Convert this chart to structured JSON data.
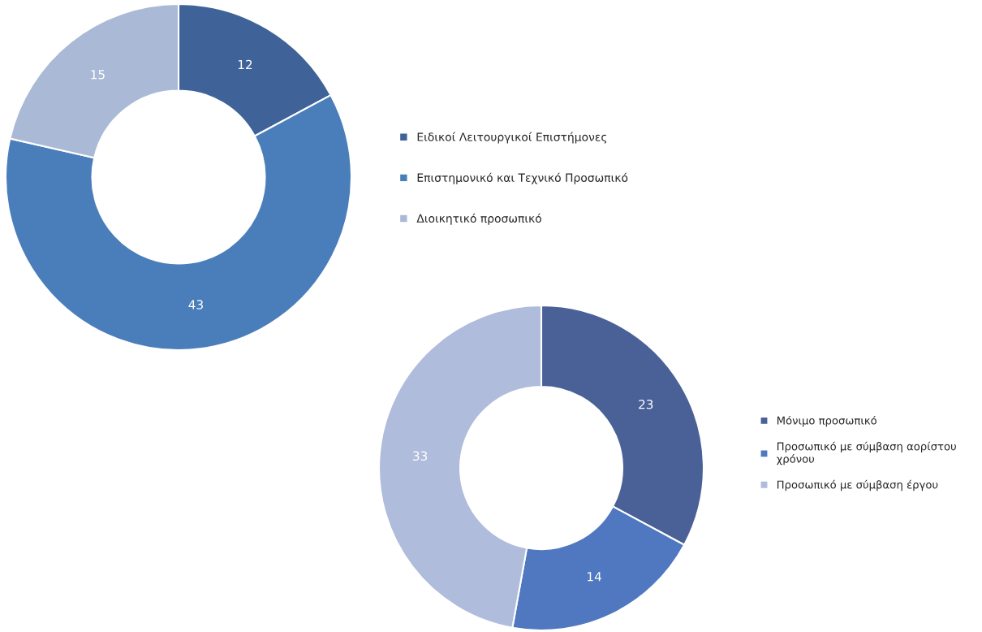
{
  "chart_data": [
    {
      "type": "donut",
      "categories": [
        "Ειδικοί Λειτουργικοί Επιστήμονες",
        "Επιστημονικό και Τεχνικό Προσωπικό",
        "Διοικητικό προσωπικό"
      ],
      "values": [
        12,
        43,
        15
      ],
      "colors": [
        "#3f6399",
        "#4a7ebb",
        "#a9b9d6"
      ],
      "data_labels": true,
      "legend": "right"
    },
    {
      "type": "donut",
      "categories": [
        "Μόνιμο προσωπικό",
        "Προσωπικό με σύμβαση αορίστου\nχρόνου",
        "Προσωπικό με σύμβαση έργου"
      ],
      "values": [
        23,
        14,
        33
      ],
      "colors": [
        "#4a6198",
        "#4f78c0",
        "#b0bcdb"
      ],
      "data_labels": true,
      "legend": "right"
    }
  ]
}
